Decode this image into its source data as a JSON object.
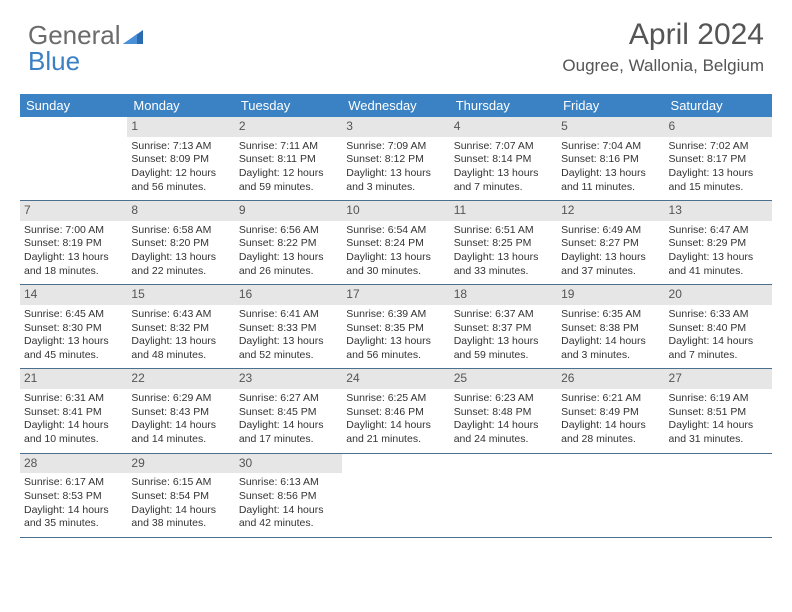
{
  "logo": {
    "word1": "General",
    "word2": "Blue"
  },
  "header": {
    "title": "April 2024",
    "location": "Ougree, Wallonia, Belgium"
  },
  "colors": {
    "dow_bg": "#3b82c4",
    "dow_text": "#ffffff",
    "daynum_bg": "#e6e6e6",
    "row_border": "#4a6f8f",
    "logo_gray": "#6b6b6b",
    "logo_blue": "#3b7fc4"
  },
  "days_of_week": [
    "Sunday",
    "Monday",
    "Tuesday",
    "Wednesday",
    "Thursday",
    "Friday",
    "Saturday"
  ],
  "weeks": [
    [
      {
        "num": "",
        "lines": [
          "",
          "",
          "",
          ""
        ]
      },
      {
        "num": "1",
        "lines": [
          "Sunrise: 7:13 AM",
          "Sunset: 8:09 PM",
          "Daylight: 12 hours",
          "and 56 minutes."
        ]
      },
      {
        "num": "2",
        "lines": [
          "Sunrise: 7:11 AM",
          "Sunset: 8:11 PM",
          "Daylight: 12 hours",
          "and 59 minutes."
        ]
      },
      {
        "num": "3",
        "lines": [
          "Sunrise: 7:09 AM",
          "Sunset: 8:12 PM",
          "Daylight: 13 hours",
          "and 3 minutes."
        ]
      },
      {
        "num": "4",
        "lines": [
          "Sunrise: 7:07 AM",
          "Sunset: 8:14 PM",
          "Daylight: 13 hours",
          "and 7 minutes."
        ]
      },
      {
        "num": "5",
        "lines": [
          "Sunrise: 7:04 AM",
          "Sunset: 8:16 PM",
          "Daylight: 13 hours",
          "and 11 minutes."
        ]
      },
      {
        "num": "6",
        "lines": [
          "Sunrise: 7:02 AM",
          "Sunset: 8:17 PM",
          "Daylight: 13 hours",
          "and 15 minutes."
        ]
      }
    ],
    [
      {
        "num": "7",
        "lines": [
          "Sunrise: 7:00 AM",
          "Sunset: 8:19 PM",
          "Daylight: 13 hours",
          "and 18 minutes."
        ]
      },
      {
        "num": "8",
        "lines": [
          "Sunrise: 6:58 AM",
          "Sunset: 8:20 PM",
          "Daylight: 13 hours",
          "and 22 minutes."
        ]
      },
      {
        "num": "9",
        "lines": [
          "Sunrise: 6:56 AM",
          "Sunset: 8:22 PM",
          "Daylight: 13 hours",
          "and 26 minutes."
        ]
      },
      {
        "num": "10",
        "lines": [
          "Sunrise: 6:54 AM",
          "Sunset: 8:24 PM",
          "Daylight: 13 hours",
          "and 30 minutes."
        ]
      },
      {
        "num": "11",
        "lines": [
          "Sunrise: 6:51 AM",
          "Sunset: 8:25 PM",
          "Daylight: 13 hours",
          "and 33 minutes."
        ]
      },
      {
        "num": "12",
        "lines": [
          "Sunrise: 6:49 AM",
          "Sunset: 8:27 PM",
          "Daylight: 13 hours",
          "and 37 minutes."
        ]
      },
      {
        "num": "13",
        "lines": [
          "Sunrise: 6:47 AM",
          "Sunset: 8:29 PM",
          "Daylight: 13 hours",
          "and 41 minutes."
        ]
      }
    ],
    [
      {
        "num": "14",
        "lines": [
          "Sunrise: 6:45 AM",
          "Sunset: 8:30 PM",
          "Daylight: 13 hours",
          "and 45 minutes."
        ]
      },
      {
        "num": "15",
        "lines": [
          "Sunrise: 6:43 AM",
          "Sunset: 8:32 PM",
          "Daylight: 13 hours",
          "and 48 minutes."
        ]
      },
      {
        "num": "16",
        "lines": [
          "Sunrise: 6:41 AM",
          "Sunset: 8:33 PM",
          "Daylight: 13 hours",
          "and 52 minutes."
        ]
      },
      {
        "num": "17",
        "lines": [
          "Sunrise: 6:39 AM",
          "Sunset: 8:35 PM",
          "Daylight: 13 hours",
          "and 56 minutes."
        ]
      },
      {
        "num": "18",
        "lines": [
          "Sunrise: 6:37 AM",
          "Sunset: 8:37 PM",
          "Daylight: 13 hours",
          "and 59 minutes."
        ]
      },
      {
        "num": "19",
        "lines": [
          "Sunrise: 6:35 AM",
          "Sunset: 8:38 PM",
          "Daylight: 14 hours",
          "and 3 minutes."
        ]
      },
      {
        "num": "20",
        "lines": [
          "Sunrise: 6:33 AM",
          "Sunset: 8:40 PM",
          "Daylight: 14 hours",
          "and 7 minutes."
        ]
      }
    ],
    [
      {
        "num": "21",
        "lines": [
          "Sunrise: 6:31 AM",
          "Sunset: 8:41 PM",
          "Daylight: 14 hours",
          "and 10 minutes."
        ]
      },
      {
        "num": "22",
        "lines": [
          "Sunrise: 6:29 AM",
          "Sunset: 8:43 PM",
          "Daylight: 14 hours",
          "and 14 minutes."
        ]
      },
      {
        "num": "23",
        "lines": [
          "Sunrise: 6:27 AM",
          "Sunset: 8:45 PM",
          "Daylight: 14 hours",
          "and 17 minutes."
        ]
      },
      {
        "num": "24",
        "lines": [
          "Sunrise: 6:25 AM",
          "Sunset: 8:46 PM",
          "Daylight: 14 hours",
          "and 21 minutes."
        ]
      },
      {
        "num": "25",
        "lines": [
          "Sunrise: 6:23 AM",
          "Sunset: 8:48 PM",
          "Daylight: 14 hours",
          "and 24 minutes."
        ]
      },
      {
        "num": "26",
        "lines": [
          "Sunrise: 6:21 AM",
          "Sunset: 8:49 PM",
          "Daylight: 14 hours",
          "and 28 minutes."
        ]
      },
      {
        "num": "27",
        "lines": [
          "Sunrise: 6:19 AM",
          "Sunset: 8:51 PM",
          "Daylight: 14 hours",
          "and 31 minutes."
        ]
      }
    ],
    [
      {
        "num": "28",
        "lines": [
          "Sunrise: 6:17 AM",
          "Sunset: 8:53 PM",
          "Daylight: 14 hours",
          "and 35 minutes."
        ]
      },
      {
        "num": "29",
        "lines": [
          "Sunrise: 6:15 AM",
          "Sunset: 8:54 PM",
          "Daylight: 14 hours",
          "and 38 minutes."
        ]
      },
      {
        "num": "30",
        "lines": [
          "Sunrise: 6:13 AM",
          "Sunset: 8:56 PM",
          "Daylight: 14 hours",
          "and 42 minutes."
        ]
      },
      {
        "num": "",
        "lines": [
          "",
          "",
          "",
          ""
        ]
      },
      {
        "num": "",
        "lines": [
          "",
          "",
          "",
          ""
        ]
      },
      {
        "num": "",
        "lines": [
          "",
          "",
          "",
          ""
        ]
      },
      {
        "num": "",
        "lines": [
          "",
          "",
          "",
          ""
        ]
      }
    ]
  ]
}
